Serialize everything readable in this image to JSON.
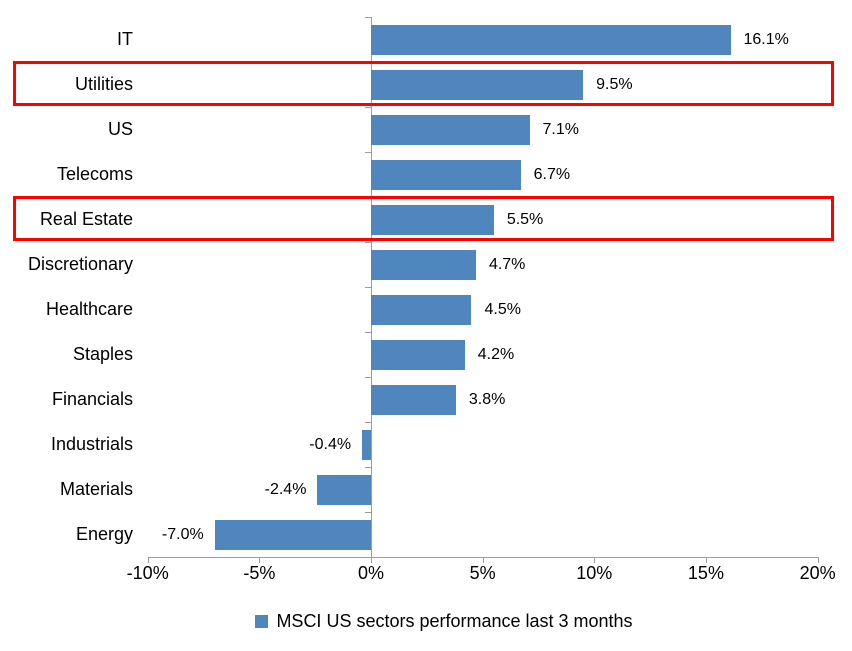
{
  "chart_data": {
    "type": "bar",
    "orientation": "horizontal",
    "categories": [
      "IT",
      "Utilities",
      "US",
      "Telecoms",
      "Real Estate",
      "Discretionary",
      "Healthcare",
      "Staples",
      "Financials",
      "Industrials",
      "Materials",
      "Energy"
    ],
    "values": [
      16.1,
      9.5,
      7.1,
      6.7,
      5.5,
      4.7,
      4.5,
      4.2,
      3.8,
      -0.4,
      -2.4,
      -7.0
    ],
    "data_labels": [
      "16.1%",
      "9.5%",
      "7.1%",
      "6.7%",
      "5.5%",
      "4.7%",
      "4.5%",
      "4.2%",
      "3.8%",
      "-0.4%",
      "-2.4%",
      "-7.0%"
    ],
    "x_axis": {
      "min": -10,
      "max": 20,
      "tick_values": [
        -10,
        -5,
        0,
        5,
        10,
        15,
        20
      ],
      "ticks": [
        "-10%",
        "-5%",
        "0%",
        "5%",
        "10%",
        "15%",
        "20%"
      ]
    },
    "grid": "off",
    "series_color": "#4e86bd",
    "axis_color": "#9d9d9d",
    "legend": {
      "position": "bottom",
      "label": "MSCI US sectors performance last 3 months"
    },
    "highlight": {
      "categories": [
        "Utilities",
        "Real Estate"
      ],
      "color": "#ff0000"
    }
  }
}
